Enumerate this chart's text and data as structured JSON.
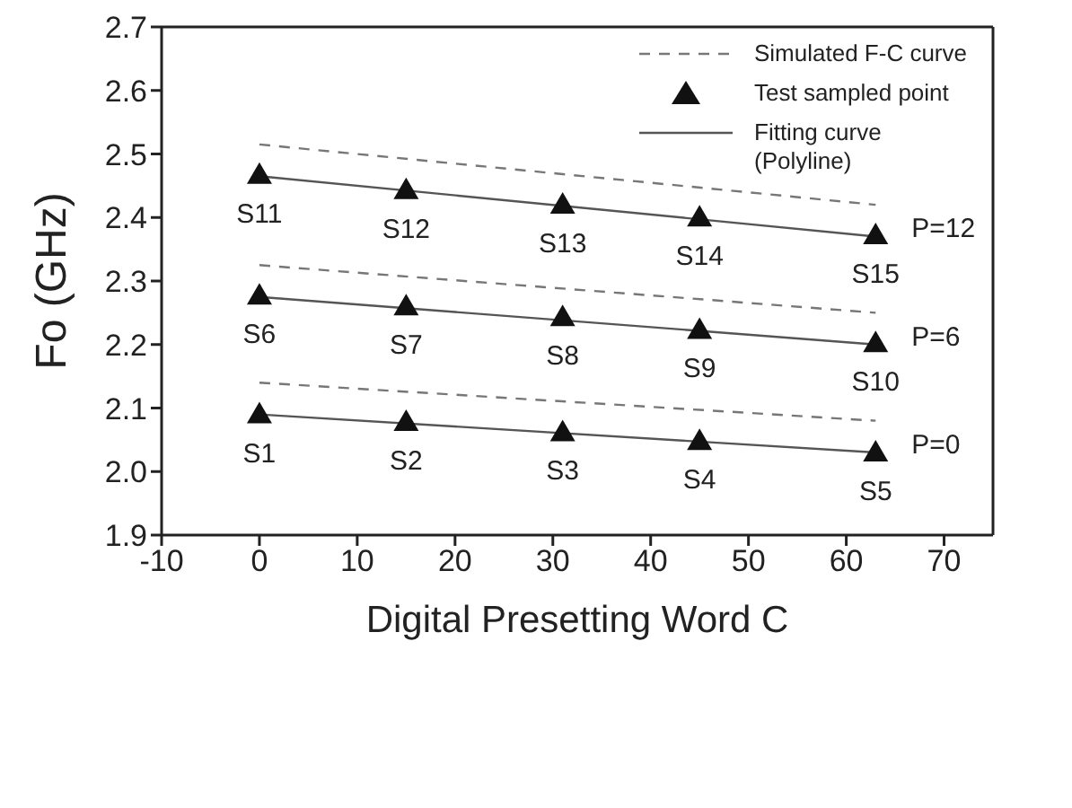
{
  "chart_data": {
    "type": "line",
    "xlabel": "Digital Presetting Word C",
    "ylabel": "Fo (GHz)",
    "xlim": [
      -10,
      75
    ],
    "xticks": [
      -10,
      0,
      10,
      20,
      30,
      40,
      50,
      60,
      70
    ],
    "ylim": [
      1.9,
      2.7
    ],
    "yticks": [
      1.9,
      {
        "value": 2,
        "label": "2.0"
      },
      2.1,
      2.2,
      2.3,
      2.4,
      2.5,
      2.6,
      2.7
    ],
    "grid": false,
    "legend": "top right",
    "series": [
      {
        "name": "Simulated F-C curve",
        "line_style": "dashed",
        "color": "#777777",
        "x": [
          0,
          63
        ],
        "values": [
          2.14,
          2.08
        ]
      },
      {
        "line_style": "dashed",
        "color": "#777777",
        "x": [
          0,
          63
        ],
        "values": [
          2.325,
          2.25
        ]
      },
      {
        "line_style": "dashed",
        "color": "#777777",
        "x": [
          0,
          63
        ],
        "values": [
          2.515,
          2.42
        ]
      },
      {
        "name": "Test sampled point",
        "type": "scatter",
        "marker": "triangle",
        "color": "#111111",
        "x": [
          0,
          15,
          31,
          45,
          63
        ],
        "values": [
          2.09,
          2.078,
          2.062,
          2.048,
          2.03
        ]
      },
      {
        "type": "scatter",
        "marker": "triangle",
        "color": "#111111",
        "x": [
          0,
          15,
          31,
          45,
          63
        ],
        "values": [
          2.277,
          2.26,
          2.243,
          2.223,
          2.202
        ]
      },
      {
        "type": "scatter",
        "marker": "triangle",
        "color": "#111111",
        "x": [
          0,
          15,
          31,
          45,
          63
        ],
        "values": [
          2.467,
          2.443,
          2.42,
          2.4,
          2.372
        ]
      },
      {
        "name": "Fitting curve (Polyline)",
        "line_style": "solid",
        "color": "#555555",
        "x": [
          0,
          63
        ],
        "values": [
          2.09,
          2.03
        ]
      },
      {
        "line_style": "solid",
        "color": "#555555",
        "x": [
          0,
          63
        ],
        "values": [
          2.275,
          2.2
        ]
      },
      {
        "line_style": "solid",
        "color": "#555555",
        "x": [
          0,
          63
        ],
        "values": [
          2.465,
          2.37
        ]
      }
    ],
    "annotations": [
      {
        "text": "S1",
        "x": 0,
        "y": 2.09
      },
      {
        "text": "S2",
        "x": 15,
        "y": 2.078
      },
      {
        "text": "S3",
        "x": 31,
        "y": 2.062
      },
      {
        "text": "S4",
        "x": 45,
        "y": 2.048
      },
      {
        "text": "S5",
        "x": 63,
        "y": 2.03
      },
      {
        "text": "S6",
        "x": 0,
        "y": 2.277
      },
      {
        "text": "S7",
        "x": 15,
        "y": 2.26
      },
      {
        "text": "S8",
        "x": 31,
        "y": 2.243
      },
      {
        "text": "S9",
        "x": 45,
        "y": 2.223
      },
      {
        "text": "S10",
        "x": 63,
        "y": 2.202
      },
      {
        "text": "S11",
        "x": 0,
        "y": 2.467
      },
      {
        "text": "S12",
        "x": 15,
        "y": 2.443
      },
      {
        "text": "S13",
        "x": 31,
        "y": 2.42
      },
      {
        "text": "S14",
        "x": 45,
        "y": 2.4
      },
      {
        "text": "S15",
        "x": 63,
        "y": 2.372
      },
      "P=0",
      "P=6",
      "P=12"
    ]
  }
}
